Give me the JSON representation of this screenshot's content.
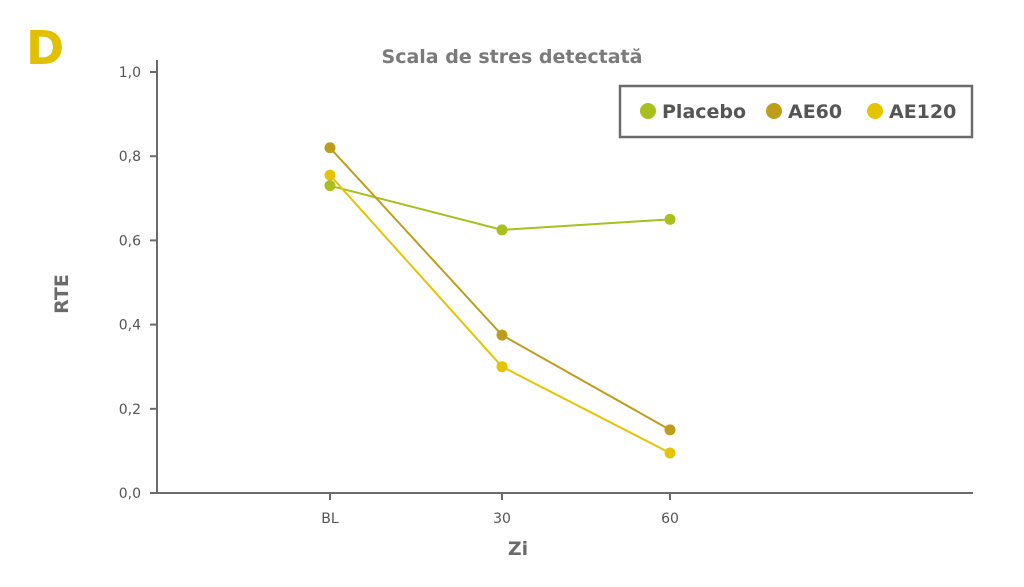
{
  "panel_letter": "D",
  "colors": {
    "panel_letter": "#e0c000",
    "axis": "#6b6b6b",
    "placebo": "#a8bf1e",
    "ae60": "#bf9d1c",
    "ae120": "#e4c403"
  },
  "chart_data": {
    "type": "line",
    "title": "Scala de stres detectată",
    "xlabel": "Zi",
    "ylabel": "RTE",
    "categories": [
      "BL",
      "30",
      "60"
    ],
    "y_ticks": [
      "0,0",
      "0,2",
      "0,4",
      "0,6",
      "0,8",
      "1,0"
    ],
    "ylim": [
      0,
      1
    ],
    "grid": false,
    "legend_position": "top-right",
    "series": [
      {
        "name": "Placebo",
        "color": "#a8bf1e",
        "values": [
          0.73,
          0.625,
          0.65
        ]
      },
      {
        "name": "AE60",
        "color": "#bf9d1c",
        "values": [
          0.82,
          0.375,
          0.15
        ]
      },
      {
        "name": "AE120",
        "color": "#e4c403",
        "values": [
          0.755,
          0.3,
          0.095
        ]
      }
    ]
  }
}
